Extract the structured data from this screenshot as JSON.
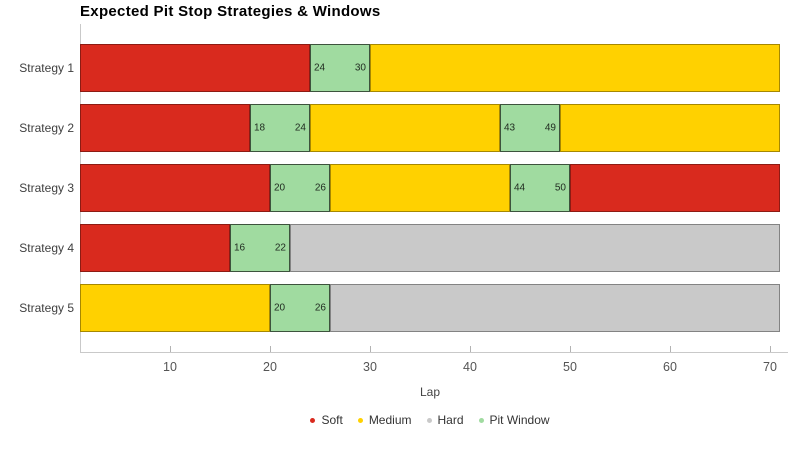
{
  "chart_data": {
    "type": "bar",
    "orientation": "horizontal-stacked",
    "title": "Expected Pit Stop Strategies & Windows",
    "xlabel": "Lap",
    "x_min": 1,
    "x_max": 71,
    "x_ticks": [
      10,
      20,
      30,
      40,
      50,
      60,
      70
    ],
    "grid": "off",
    "legend_position": "bottom-center",
    "categories": [
      "Strategy 1",
      "Strategy 2",
      "Strategy 3",
      "Strategy 4",
      "Strategy 5"
    ],
    "legend": [
      {
        "label": "Soft",
        "key": "soft"
      },
      {
        "label": "Medium",
        "key": "medium"
      },
      {
        "label": "Hard",
        "key": "hard"
      },
      {
        "label": "Pit Window",
        "key": "window"
      }
    ],
    "colors": {
      "soft": "#d92a1e",
      "medium": "#ffd100",
      "hard": "#c9c9c9",
      "window": "#a0dba0"
    },
    "rows": [
      {
        "strategy": "Strategy 1",
        "segments": [
          {
            "kind": "soft",
            "start": 1,
            "end": 24
          },
          {
            "kind": "window",
            "start": 24,
            "end": 30,
            "labeled": true
          },
          {
            "kind": "medium",
            "start": 30,
            "end": 71
          }
        ]
      },
      {
        "strategy": "Strategy 2",
        "segments": [
          {
            "kind": "soft",
            "start": 1,
            "end": 18
          },
          {
            "kind": "window",
            "start": 18,
            "end": 24,
            "labeled": true
          },
          {
            "kind": "medium",
            "start": 24,
            "end": 43
          },
          {
            "kind": "window",
            "start": 43,
            "end": 49,
            "labeled": true
          },
          {
            "kind": "medium",
            "start": 49,
            "end": 71
          }
        ]
      },
      {
        "strategy": "Strategy 3",
        "segments": [
          {
            "kind": "soft",
            "start": 1,
            "end": 20
          },
          {
            "kind": "window",
            "start": 20,
            "end": 26,
            "labeled": true
          },
          {
            "kind": "medium",
            "start": 26,
            "end": 44
          },
          {
            "kind": "window",
            "start": 44,
            "end": 50,
            "labeled": true
          },
          {
            "kind": "soft",
            "start": 50,
            "end": 71
          }
        ]
      },
      {
        "strategy": "Strategy 4",
        "segments": [
          {
            "kind": "soft",
            "start": 1,
            "end": 16
          },
          {
            "kind": "window",
            "start": 16,
            "end": 22,
            "labeled": true
          },
          {
            "kind": "hard",
            "start": 22,
            "end": 71
          }
        ]
      },
      {
        "strategy": "Strategy 5",
        "segments": [
          {
            "kind": "medium",
            "start": 1,
            "end": 20
          },
          {
            "kind": "window",
            "start": 20,
            "end": 26,
            "labeled": true
          },
          {
            "kind": "hard",
            "start": 26,
            "end": 71
          }
        ]
      }
    ]
  }
}
